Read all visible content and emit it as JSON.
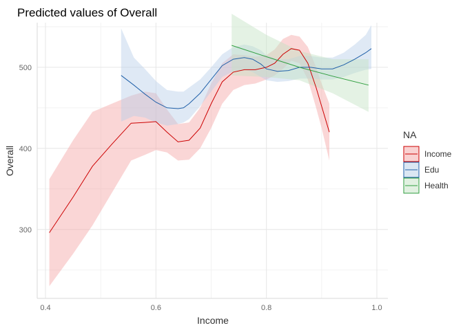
{
  "chart_data": {
    "type": "line",
    "title": "Predicted values of Overall",
    "xlabel": "Income",
    "ylabel": "Overall",
    "xlim": [
      0.385,
      1.02
    ],
    "ylim": [
      215,
      555
    ],
    "x_ticks": [
      0.4,
      0.6,
      0.8,
      1.0
    ],
    "x_tick_labels": [
      "0.4",
      "0.6",
      "0.8",
      "1.0"
    ],
    "y_ticks": [
      300,
      400,
      500
    ],
    "y_tick_labels": [
      "300",
      "400",
      "500"
    ],
    "grid": true,
    "legend": {
      "title": "NA",
      "position": "right"
    },
    "series": [
      {
        "name": "Income",
        "color": "#cc0000",
        "fill": "#f4a3a3",
        "x": [
          0.407,
          0.45,
          0.485,
          0.52,
          0.555,
          0.58,
          0.6,
          0.62,
          0.64,
          0.66,
          0.68,
          0.7,
          0.72,
          0.74,
          0.76,
          0.78,
          0.8,
          0.815,
          0.83,
          0.845,
          0.86,
          0.875,
          0.89,
          0.9,
          0.914
        ],
        "y": [
          296,
          340,
          378,
          405,
          431,
          432,
          433,
          420,
          408,
          410,
          425,
          455,
          482,
          494,
          497,
          497,
          500,
          505,
          516,
          523,
          521,
          505,
          475,
          452,
          420
        ],
        "lower": [
          230,
          270,
          305,
          345,
          385,
          392,
          398,
          395,
          385,
          386,
          400,
          425,
          455,
          472,
          478,
          480,
          485,
          490,
          498,
          508,
          505,
          485,
          450,
          425,
          385
        ],
        "upper": [
          362,
          410,
          445,
          455,
          465,
          470,
          468,
          448,
          430,
          432,
          450,
          480,
          505,
          516,
          515,
          513,
          515,
          522,
          535,
          540,
          538,
          525,
          500,
          480,
          455
        ]
      },
      {
        "name": "Edu",
        "color": "#1f5fa8",
        "fill": "#b8cfe8",
        "x": [
          0.537,
          0.56,
          0.58,
          0.6,
          0.62,
          0.64,
          0.65,
          0.66,
          0.68,
          0.7,
          0.72,
          0.74,
          0.76,
          0.775,
          0.79,
          0.8,
          0.82,
          0.84,
          0.86,
          0.88,
          0.9,
          0.92,
          0.94,
          0.96,
          0.98,
          0.99
        ],
        "y": [
          490,
          478,
          467,
          457,
          450,
          449,
          450,
          455,
          468,
          485,
          502,
          510,
          512,
          510,
          504,
          498,
          495,
          496,
          500,
          500,
          498,
          498,
          503,
          510,
          518,
          523
        ],
        "lower": [
          433,
          440,
          438,
          432,
          428,
          430,
          432,
          436,
          452,
          470,
          488,
          495,
          497,
          494,
          488,
          484,
          482,
          483,
          486,
          486,
          485,
          485,
          488,
          493,
          497,
          498
        ],
        "upper": [
          548,
          512,
          498,
          483,
          472,
          470,
          470,
          475,
          485,
          500,
          516,
          525,
          528,
          526,
          521,
          515,
          510,
          510,
          514,
          514,
          512,
          512,
          518,
          528,
          540,
          552
        ]
      },
      {
        "name": "Health",
        "color": "#2f9e3f",
        "fill": "#c4e3c4",
        "x": [
          0.737,
          0.8,
          0.86,
          0.92,
          0.985
        ],
        "y": [
          527,
          513,
          500,
          489,
          478
        ],
        "lower": [
          490,
          488,
          484,
          468,
          445
        ],
        "upper": [
          566,
          540,
          520,
          510,
          510
        ]
      }
    ]
  }
}
